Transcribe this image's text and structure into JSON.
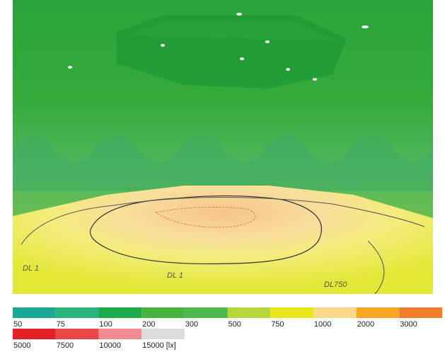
{
  "rendering": {
    "floor_labels": [
      "DL 1",
      "DL 1",
      "DL750"
    ]
  },
  "legend": {
    "items": [
      {
        "label": "50",
        "color": "#1aa895"
      },
      {
        "label": "75",
        "color": "#2db27a"
      },
      {
        "label": "100",
        "color": "#1daa48"
      },
      {
        "label": "200",
        "color": "#45b53f"
      },
      {
        "label": "300",
        "color": "#4cb94f"
      },
      {
        "label": "500",
        "color": "#b9d63b"
      },
      {
        "label": "750",
        "color": "#e9e71b"
      },
      {
        "label": "1000",
        "color": "#fcd98a"
      },
      {
        "label": "2000",
        "color": "#f6a623"
      },
      {
        "label": "3000",
        "color": "#f07d2b"
      },
      {
        "label": "5000",
        "color": "#e61e28"
      },
      {
        "label": "7500",
        "color": "#ea4848"
      },
      {
        "label": "10000",
        "color": "#f08b94"
      },
      {
        "label": "15000 [lx]",
        "color": "#dcdcdc"
      }
    ]
  }
}
